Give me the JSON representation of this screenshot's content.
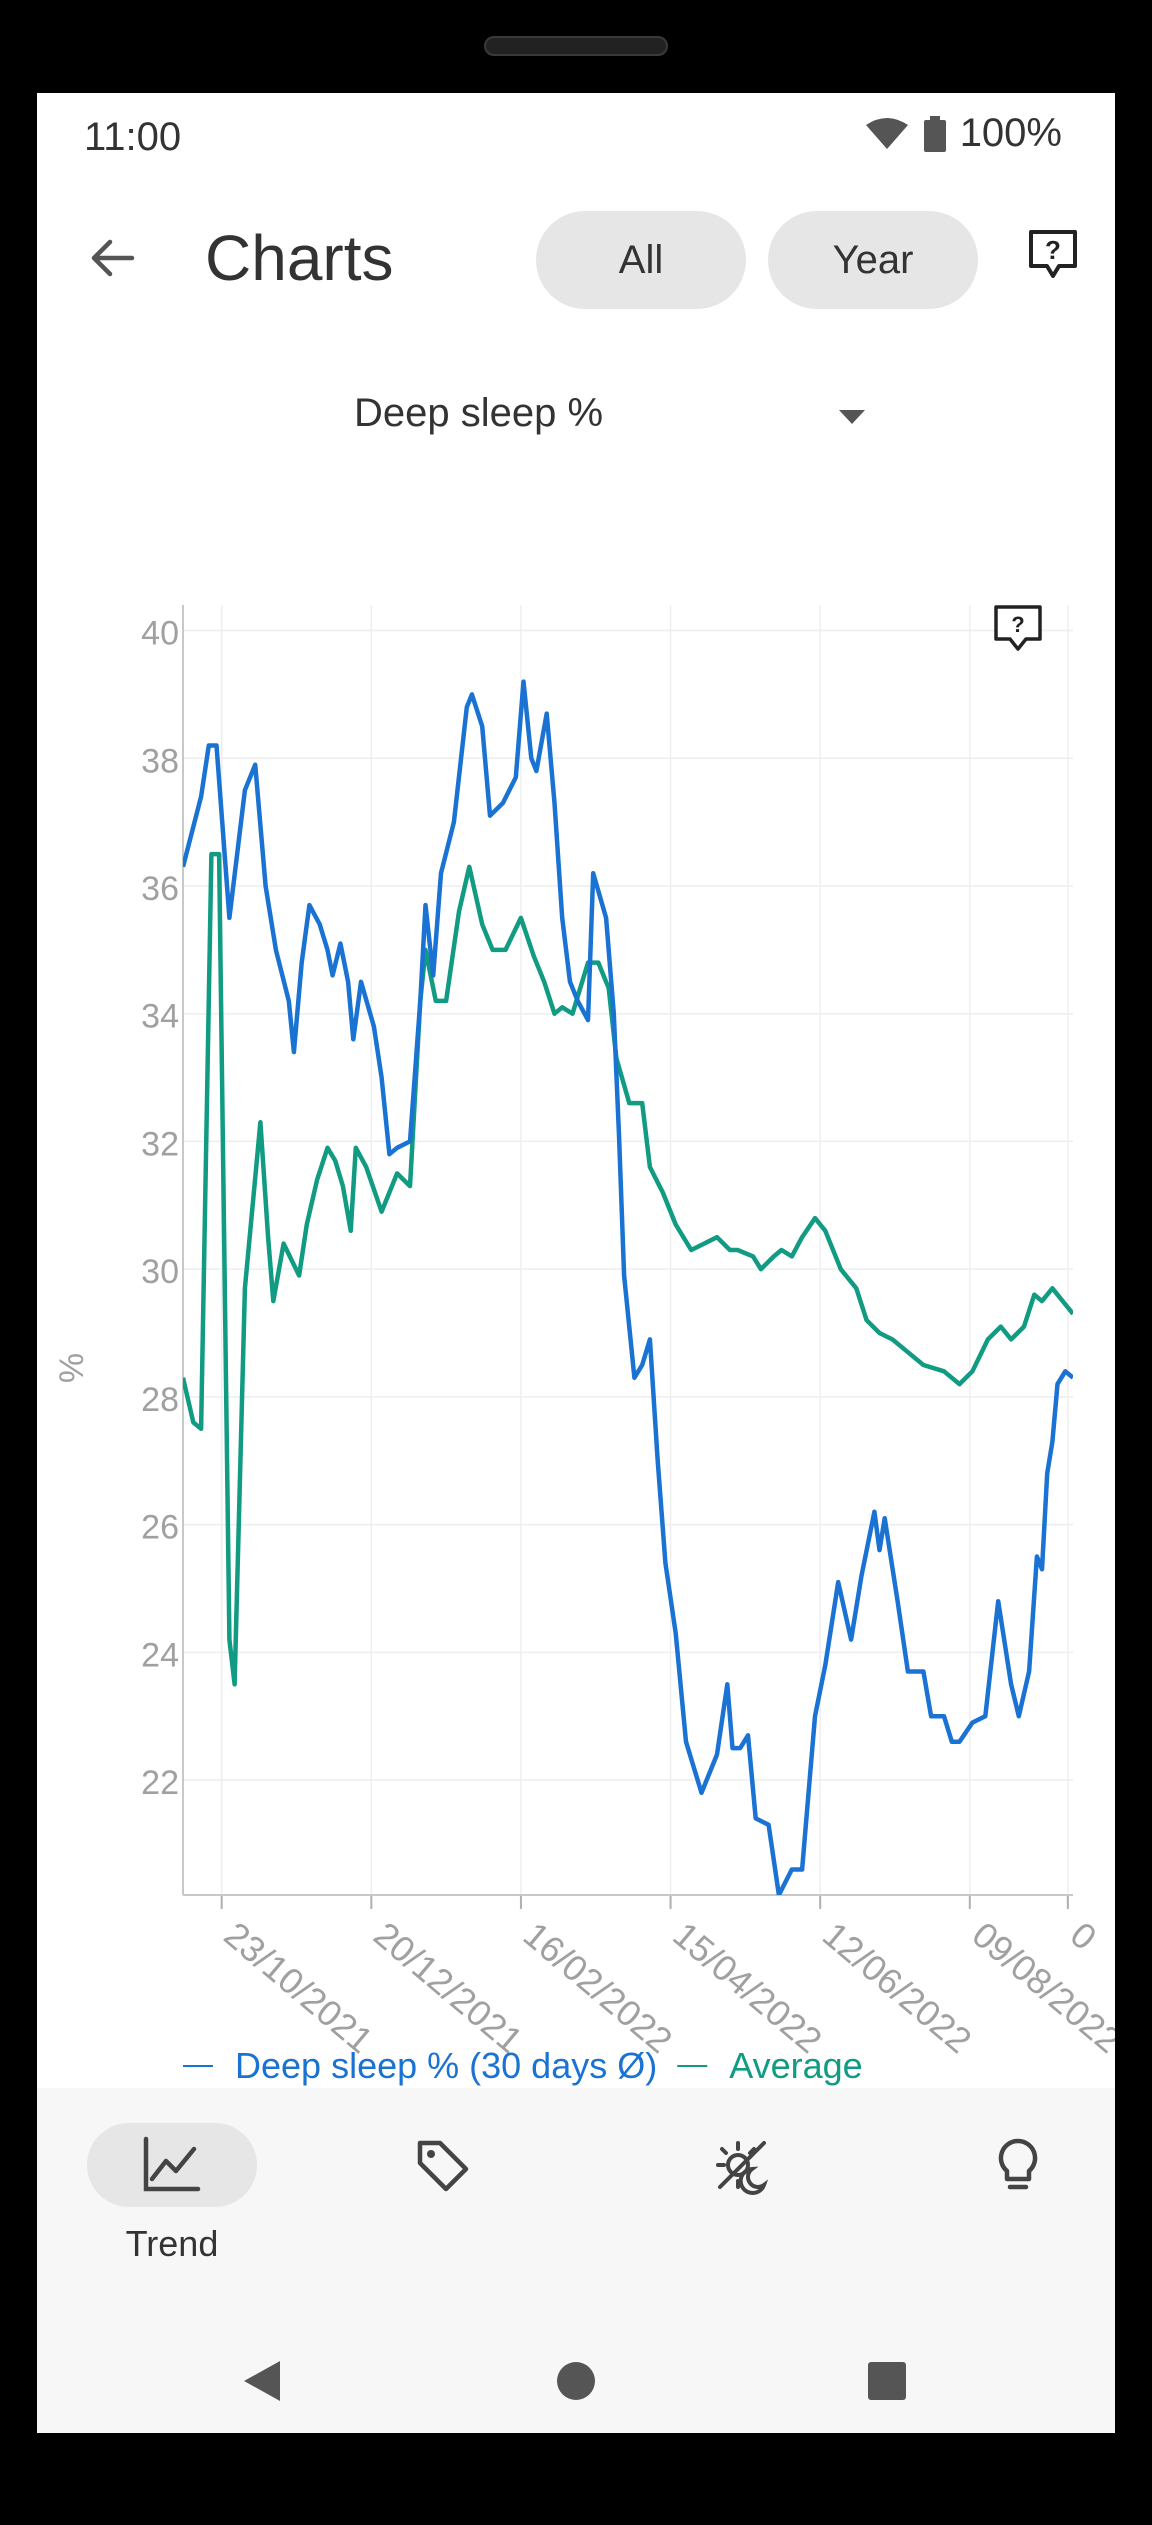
{
  "status_bar": {
    "time": "11:00",
    "battery": "100%"
  },
  "app_bar": {
    "title": "Charts",
    "chips": [
      "All",
      "Year"
    ]
  },
  "metric_selector": {
    "selected": "Deep sleep %"
  },
  "chart_data": {
    "type": "line",
    "ylabel": "%",
    "ylim": [
      20.2,
      40.4
    ],
    "yticks": [
      40,
      38,
      36,
      34,
      32,
      30,
      28,
      26,
      24,
      22
    ],
    "xlim": [
      "2021-10-08",
      "2022-09-18"
    ],
    "xtick_labels": [
      "23/10/2021",
      "20/12/2021",
      "16/02/2022",
      "15/04/2022",
      "12/06/2022",
      "09/08/2022",
      "0"
    ],
    "xtick_dates": [
      "2021-10-23",
      "2021-12-20",
      "2022-02-16",
      "2022-04-15",
      "2022-06-12",
      "2022-08-09",
      "2022-09-16"
    ],
    "grid": true,
    "legend_position": "bottom",
    "series": [
      {
        "name": "Deep sleep % (30 days Ø)",
        "color": "#1a73d2",
        "points": [
          [
            "2021-10-08",
            36.3
          ],
          [
            "2021-10-15",
            37.4
          ],
          [
            "2021-10-18",
            38.2
          ],
          [
            "2021-10-21",
            38.2
          ],
          [
            "2021-10-26",
            35.5
          ],
          [
            "2021-11-01",
            37.5
          ],
          [
            "2021-11-05",
            37.9
          ],
          [
            "2021-11-09",
            36.0
          ],
          [
            "2021-11-13",
            35.0
          ],
          [
            "2021-11-18",
            34.2
          ],
          [
            "2021-11-20",
            33.4
          ],
          [
            "2021-11-23",
            34.8
          ],
          [
            "2021-11-26",
            35.7
          ],
          [
            "2021-11-30",
            35.4
          ],
          [
            "2021-12-03",
            35.0
          ],
          [
            "2021-12-05",
            34.6
          ],
          [
            "2021-12-08",
            35.1
          ],
          [
            "2021-12-11",
            34.5
          ],
          [
            "2021-12-13",
            33.6
          ],
          [
            "2021-12-16",
            34.5
          ],
          [
            "2021-12-21",
            33.8
          ],
          [
            "2021-12-24",
            33.0
          ],
          [
            "2021-12-27",
            31.8
          ],
          [
            "2021-12-30",
            31.9
          ],
          [
            "2022-01-04",
            32.0
          ],
          [
            "2022-01-08",
            34.2
          ],
          [
            "2022-01-10",
            35.7
          ],
          [
            "2022-01-13",
            34.6
          ],
          [
            "2022-01-16",
            36.2
          ],
          [
            "2022-01-21",
            37.0
          ],
          [
            "2022-01-26",
            38.8
          ],
          [
            "2022-01-28",
            39.0
          ],
          [
            "2022-02-01",
            38.5
          ],
          [
            "2022-02-04",
            37.1
          ],
          [
            "2022-02-09",
            37.3
          ],
          [
            "2022-02-14",
            37.7
          ],
          [
            "2022-02-17",
            39.2
          ],
          [
            "2022-02-20",
            38.0
          ],
          [
            "2022-02-22",
            37.8
          ],
          [
            "2022-02-26",
            38.7
          ],
          [
            "2022-03-01",
            37.3
          ],
          [
            "2022-03-04",
            35.5
          ],
          [
            "2022-03-07",
            34.5
          ],
          [
            "2022-03-10",
            34.2
          ],
          [
            "2022-03-14",
            33.9
          ],
          [
            "2022-03-16",
            36.2
          ],
          [
            "2022-03-21",
            35.5
          ],
          [
            "2022-03-24",
            34.0
          ],
          [
            "2022-03-26",
            32.1
          ],
          [
            "2022-03-28",
            29.9
          ],
          [
            "2022-04-01",
            28.3
          ],
          [
            "2022-04-04",
            28.5
          ],
          [
            "2022-04-07",
            28.9
          ],
          [
            "2022-04-10",
            27.0
          ],
          [
            "2022-04-13",
            25.4
          ],
          [
            "2022-04-17",
            24.3
          ],
          [
            "2022-04-21",
            22.6
          ],
          [
            "2022-04-27",
            21.8
          ],
          [
            "2022-05-03",
            22.4
          ],
          [
            "2022-05-07",
            23.5
          ],
          [
            "2022-05-09",
            22.5
          ],
          [
            "2022-05-12",
            22.5
          ],
          [
            "2022-05-15",
            22.7
          ],
          [
            "2022-05-18",
            21.4
          ],
          [
            "2022-05-23",
            21.3
          ],
          [
            "2022-05-27",
            20.2
          ],
          [
            "2022-06-01",
            20.6
          ],
          [
            "2022-06-05",
            20.6
          ],
          [
            "2022-06-10",
            23.0
          ],
          [
            "2022-06-14",
            23.8
          ],
          [
            "2022-06-19",
            25.1
          ],
          [
            "2022-06-24",
            24.2
          ],
          [
            "2022-06-28",
            25.2
          ],
          [
            "2022-07-03",
            26.2
          ],
          [
            "2022-07-05",
            25.6
          ],
          [
            "2022-07-07",
            26.1
          ],
          [
            "2022-07-12",
            24.8
          ],
          [
            "2022-07-16",
            23.7
          ],
          [
            "2022-07-22",
            23.7
          ],
          [
            "2022-07-25",
            23.0
          ],
          [
            "2022-07-30",
            23.0
          ],
          [
            "2022-08-02",
            22.6
          ],
          [
            "2022-08-05",
            22.6
          ],
          [
            "2022-08-10",
            22.9
          ],
          [
            "2022-08-15",
            23.0
          ],
          [
            "2022-08-20",
            24.8
          ],
          [
            "2022-08-25",
            23.5
          ],
          [
            "2022-08-28",
            23.0
          ],
          [
            "2022-09-01",
            23.7
          ],
          [
            "2022-09-04",
            25.5
          ],
          [
            "2022-09-06",
            25.3
          ],
          [
            "2022-09-08",
            26.8
          ],
          [
            "2022-09-10",
            27.3
          ],
          [
            "2022-09-12",
            28.2
          ],
          [
            "2022-09-15",
            28.4
          ],
          [
            "2022-09-18",
            28.3
          ]
        ]
      },
      {
        "name": "Average",
        "color": "#119b82",
        "points": [
          [
            "2021-10-08",
            28.3
          ],
          [
            "2021-10-12",
            27.6
          ],
          [
            "2021-10-15",
            27.5
          ],
          [
            "2021-10-19",
            36.5
          ],
          [
            "2021-10-22",
            36.5
          ],
          [
            "2021-10-26",
            24.2
          ],
          [
            "2021-10-28",
            23.5
          ],
          [
            "2021-11-01",
            29.7
          ],
          [
            "2021-11-07",
            32.3
          ],
          [
            "2021-11-10",
            30.5
          ],
          [
            "2021-11-12",
            29.5
          ],
          [
            "2021-11-16",
            30.4
          ],
          [
            "2021-11-22",
            29.9
          ],
          [
            "2021-11-25",
            30.7
          ],
          [
            "2021-11-29",
            31.4
          ],
          [
            "2021-12-03",
            31.9
          ],
          [
            "2021-12-06",
            31.7
          ],
          [
            "2021-12-09",
            31.3
          ],
          [
            "2021-12-12",
            30.6
          ],
          [
            "2021-12-14",
            31.9
          ],
          [
            "2021-12-18",
            31.6
          ],
          [
            "2021-12-24",
            30.9
          ],
          [
            "2021-12-30",
            31.5
          ],
          [
            "2022-01-04",
            31.3
          ],
          [
            "2022-01-08",
            34.2
          ],
          [
            "2022-01-10",
            35.0
          ],
          [
            "2022-01-14",
            34.2
          ],
          [
            "2022-01-18",
            34.2
          ],
          [
            "2022-01-23",
            35.6
          ],
          [
            "2022-01-27",
            36.3
          ],
          [
            "2022-02-01",
            35.4
          ],
          [
            "2022-02-05",
            35.0
          ],
          [
            "2022-02-10",
            35.0
          ],
          [
            "2022-02-16",
            35.5
          ],
          [
            "2022-02-21",
            34.9
          ],
          [
            "2022-02-25",
            34.5
          ],
          [
            "2022-03-01",
            34.0
          ],
          [
            "2022-03-04",
            34.1
          ],
          [
            "2022-03-08",
            34.0
          ],
          [
            "2022-03-14",
            34.8
          ],
          [
            "2022-03-18",
            34.8
          ],
          [
            "2022-03-22",
            34.4
          ],
          [
            "2022-03-25",
            33.3
          ],
          [
            "2022-03-30",
            32.6
          ],
          [
            "2022-04-04",
            32.6
          ],
          [
            "2022-04-07",
            31.6
          ],
          [
            "2022-04-12",
            31.2
          ],
          [
            "2022-04-17",
            30.7
          ],
          [
            "2022-04-23",
            30.3
          ],
          [
            "2022-04-28",
            30.4
          ],
          [
            "2022-05-03",
            30.5
          ],
          [
            "2022-05-08",
            30.3
          ],
          [
            "2022-05-11",
            30.3
          ],
          [
            "2022-05-17",
            30.2
          ],
          [
            "2022-05-20",
            30.0
          ],
          [
            "2022-05-25",
            30.2
          ],
          [
            "2022-05-28",
            30.3
          ],
          [
            "2022-06-01",
            30.2
          ],
          [
            "2022-06-05",
            30.5
          ],
          [
            "2022-06-10",
            30.8
          ],
          [
            "2022-06-14",
            30.6
          ],
          [
            "2022-06-20",
            30.0
          ],
          [
            "2022-06-26",
            29.7
          ],
          [
            "2022-06-30",
            29.2
          ],
          [
            "2022-07-05",
            29.0
          ],
          [
            "2022-07-10",
            28.9
          ],
          [
            "2022-07-16",
            28.7
          ],
          [
            "2022-07-22",
            28.5
          ],
          [
            "2022-07-30",
            28.4
          ],
          [
            "2022-08-05",
            28.2
          ],
          [
            "2022-08-10",
            28.4
          ],
          [
            "2022-08-16",
            28.9
          ],
          [
            "2022-08-21",
            29.1
          ],
          [
            "2022-08-25",
            28.9
          ],
          [
            "2022-08-30",
            29.1
          ],
          [
            "2022-09-03",
            29.6
          ],
          [
            "2022-09-06",
            29.5
          ],
          [
            "2022-09-10",
            29.7
          ],
          [
            "2022-09-14",
            29.5
          ],
          [
            "2022-09-18",
            29.3
          ]
        ]
      }
    ]
  },
  "bottom_nav": {
    "items": [
      {
        "label": "Trend",
        "icon": "trend-chart-icon",
        "active": true
      },
      {
        "label": "",
        "icon": "tag-icon",
        "active": false
      },
      {
        "label": "",
        "icon": "sleep-moon-icon",
        "active": false
      },
      {
        "label": "",
        "icon": "lightbulb-icon",
        "active": false
      }
    ]
  }
}
